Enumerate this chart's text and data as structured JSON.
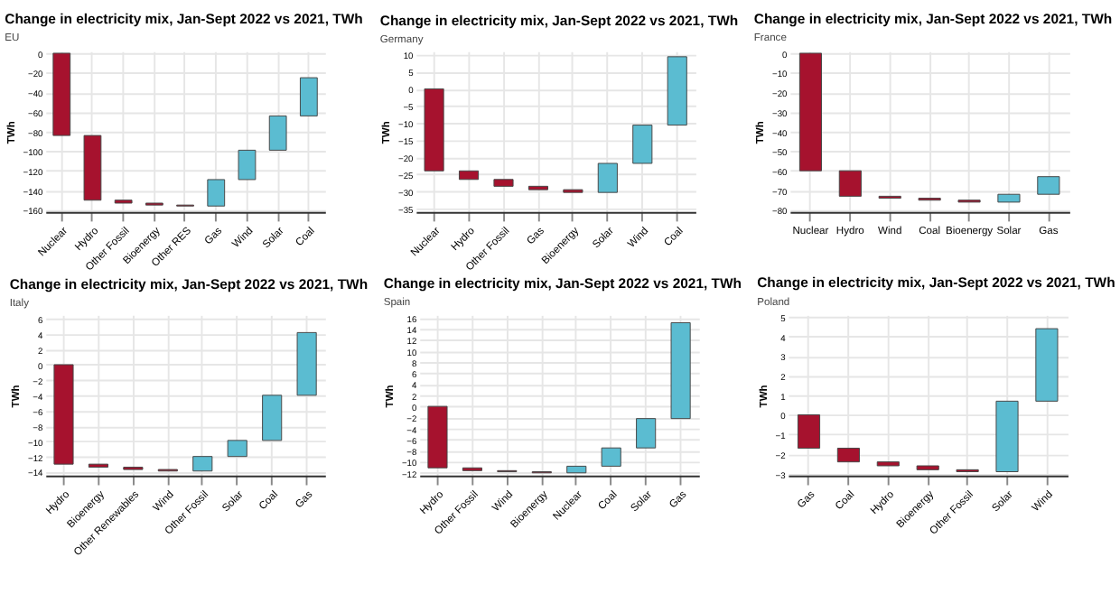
{
  "chart_data": [
    {
      "type": "bar",
      "title": "Change in electricity mix, Jan-Sept 2022 vs 2021, TWh",
      "subtitle": "EU",
      "ylabel": "TWh",
      "categories": [
        "Nuclear",
        "Hydro",
        "Other Fossil",
        "Bioenergy",
        "Other RES",
        "Gas",
        "Wind",
        "Solar",
        "Coal"
      ],
      "base": [
        0,
        -84,
        -150,
        -153,
        -155,
        -156,
        -129,
        -99,
        -64
      ],
      "values": [
        -84,
        -66,
        -3,
        -2,
        -1,
        27,
        30,
        35,
        39
      ],
      "colors": [
        "#a6122e",
        "#a6122e",
        "#a6122e",
        "#a6122e",
        "#a6122e",
        "#5bbcd1",
        "#5bbcd1",
        "#5bbcd1",
        "#5bbcd1"
      ],
      "ylim": [
        -162,
        2
      ],
      "yticks": [
        -160,
        -140,
        -120,
        -100,
        -80,
        -60,
        -40,
        -20,
        0
      ],
      "grid": true
    },
    {
      "type": "bar",
      "title": "Change in electricity mix, Jan-Sept 2022 vs 2021, TWh",
      "subtitle": "Germany",
      "ylabel": "TWh",
      "categories": [
        "Nuclear",
        "Hydro",
        "Other Fossil",
        "Gas",
        "Bioenergy",
        "Solar",
        "Wind",
        "Coal"
      ],
      "base": [
        0,
        -24,
        -26.5,
        -28.5,
        -29.5,
        -30.3,
        -21.8,
        -10.6
      ],
      "values": [
        -24,
        -2.5,
        -2,
        -1,
        -0.8,
        8.5,
        11.2,
        20
      ],
      "colors": [
        "#a6122e",
        "#a6122e",
        "#a6122e",
        "#a6122e",
        "#a6122e",
        "#5bbcd1",
        "#5bbcd1",
        "#5bbcd1"
      ],
      "ylim": [
        -36,
        11
      ],
      "yticks": [
        -35,
        -30,
        -25,
        -20,
        -15,
        -10,
        -5,
        0,
        5,
        10
      ],
      "grid": true
    },
    {
      "type": "bar",
      "title": "Change in electricity mix, Jan-Sept 2022 vs 2021, TWh",
      "subtitle": "France",
      "ylabel": "TWh",
      "categories": [
        "Nuclear",
        "Hydro",
        "Wind",
        "Coal",
        "Bioenergy",
        "Solar",
        "Gas"
      ],
      "base": [
        0,
        -60,
        -73,
        -74,
        -75,
        -76,
        -72
      ],
      "values": [
        -60,
        -13,
        -1,
        -1,
        -1,
        4,
        9
      ],
      "colors": [
        "#a6122e",
        "#a6122e",
        "#a6122e",
        "#a6122e",
        "#a6122e",
        "#5bbcd1",
        "#5bbcd1"
      ],
      "ylim": [
        -81,
        1
      ],
      "yticks": [
        -80,
        -70,
        -60,
        -50,
        -40,
        -30,
        -20,
        -10,
        0
      ],
      "grid": true
    },
    {
      "type": "bar",
      "title": "Change in electricity mix, Jan-Sept 2022 vs 2021, TWh",
      "subtitle": "Italy",
      "ylabel": "TWh",
      "categories": [
        "Hydro",
        "Bioenergy",
        "Other Renewables",
        "Wind",
        "Other Fossil",
        "Solar",
        "Coal",
        "Gas"
      ],
      "base": [
        0,
        -13,
        -13.4,
        -13.7,
        -13.9,
        -12,
        -9.9,
        -4
      ],
      "values": [
        -13,
        -0.4,
        -0.3,
        -0.2,
        1.9,
        2.1,
        5.9,
        8.2
      ],
      "colors": [
        "#a6122e",
        "#a6122e",
        "#a6122e",
        "#a6122e",
        "#5bbcd1",
        "#5bbcd1",
        "#5bbcd1",
        "#5bbcd1"
      ],
      "ylim": [
        -14.5,
        6.5
      ],
      "yticks": [
        -14,
        -12,
        -10,
        -8,
        -6,
        -4,
        -2,
        0,
        2,
        4,
        6
      ],
      "grid": true
    },
    {
      "type": "bar",
      "title": "Change in electricity mix, Jan-Sept 2022 vs 2021, TWh",
      "subtitle": "Spain",
      "ylabel": "TWh",
      "categories": [
        "Hydro",
        "Other Fossil",
        "Wind",
        "Bioenergy",
        "Nuclear",
        "Coal",
        "Solar",
        "Gas"
      ],
      "base": [
        0,
        -11.1,
        -11.6,
        -11.8,
        -12,
        -10.8,
        -7.5,
        -2.2
      ],
      "values": [
        -11.1,
        -0.5,
        -0.2,
        -0.2,
        1.2,
        3.3,
        5.3,
        17.3
      ],
      "colors": [
        "#a6122e",
        "#a6122e",
        "#a6122e",
        "#a6122e",
        "#5bbcd1",
        "#5bbcd1",
        "#5bbcd1",
        "#5bbcd1"
      ],
      "ylim": [
        -12.5,
        16.5
      ],
      "yticks": [
        -12,
        -10,
        -8,
        -6,
        -4,
        -2,
        0,
        2,
        4,
        6,
        8,
        10,
        12,
        14,
        16
      ],
      "grid": true
    },
    {
      "type": "bar",
      "title": "Change in electricity mix, Jan-Sept 2022 vs 2021, TWh",
      "subtitle": "Poland",
      "ylabel": "TWh",
      "categories": [
        "Gas",
        "Coal",
        "Hydro",
        "Bioenergy",
        "Other Fossil",
        "Solar",
        "Wind"
      ],
      "base": [
        0,
        -1.7,
        -2.4,
        -2.6,
        -2.8,
        -2.9,
        0.7
      ],
      "values": [
        -1.7,
        -0.7,
        -0.2,
        -0.2,
        -0.1,
        3.6,
        3.7
      ],
      "colors": [
        "#a6122e",
        "#a6122e",
        "#a6122e",
        "#a6122e",
        "#a6122e",
        "#5bbcd1",
        "#5bbcd1"
      ],
      "ylim": [
        -3.1,
        5.1
      ],
      "yticks": [
        -3,
        -2,
        -1,
        0,
        1,
        2,
        3,
        4,
        5
      ],
      "grid": true
    }
  ]
}
